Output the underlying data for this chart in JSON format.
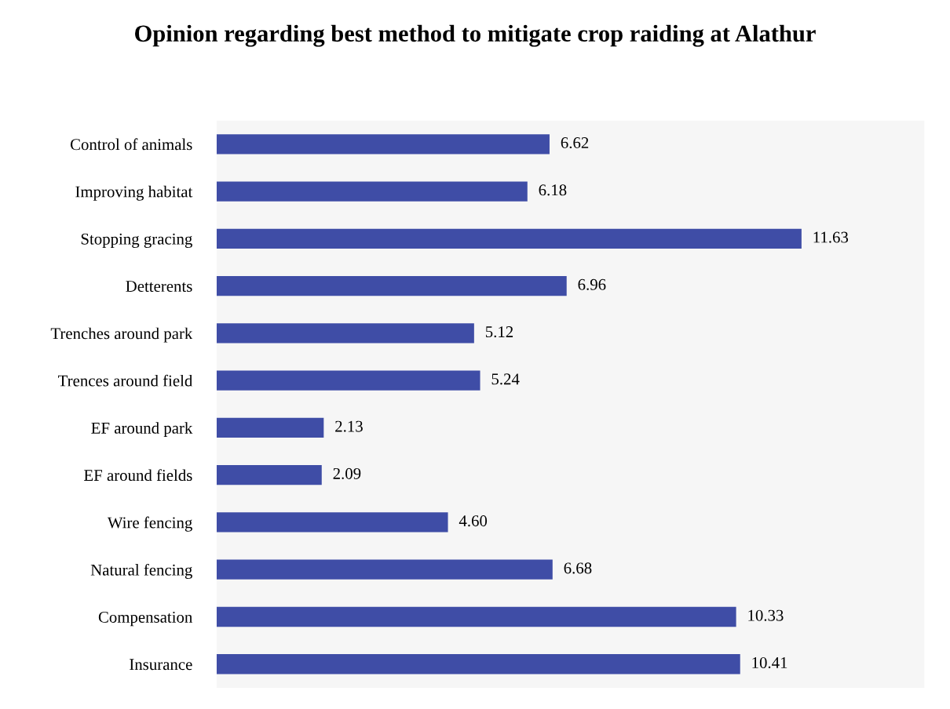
{
  "chart_data": {
    "type": "bar",
    "orientation": "horizontal",
    "title": "Opinion regarding best method to mitigate crop raiding at Alathur",
    "categories": [
      "Control of animals",
      "Improving habitat",
      "Stopping gracing",
      "Detterents",
      "Trenches around park",
      "Trences around field",
      "EF around park",
      "EF around fields",
      "Wire fencing",
      "Natural fencing",
      "Compensation",
      "Insurance"
    ],
    "values": [
      6.62,
      6.18,
      11.63,
      6.96,
      5.12,
      5.24,
      2.13,
      2.09,
      4.6,
      6.68,
      10.33,
      10.41
    ],
    "value_labels": [
      "6.62",
      "6.18",
      "11.63",
      "6.96",
      "5.12",
      "5.24",
      "2.13",
      "2.09",
      "4.60",
      "6.68",
      "10.33",
      "10.41"
    ],
    "color": "#3f4da6",
    "grid": false,
    "legend": false
  }
}
